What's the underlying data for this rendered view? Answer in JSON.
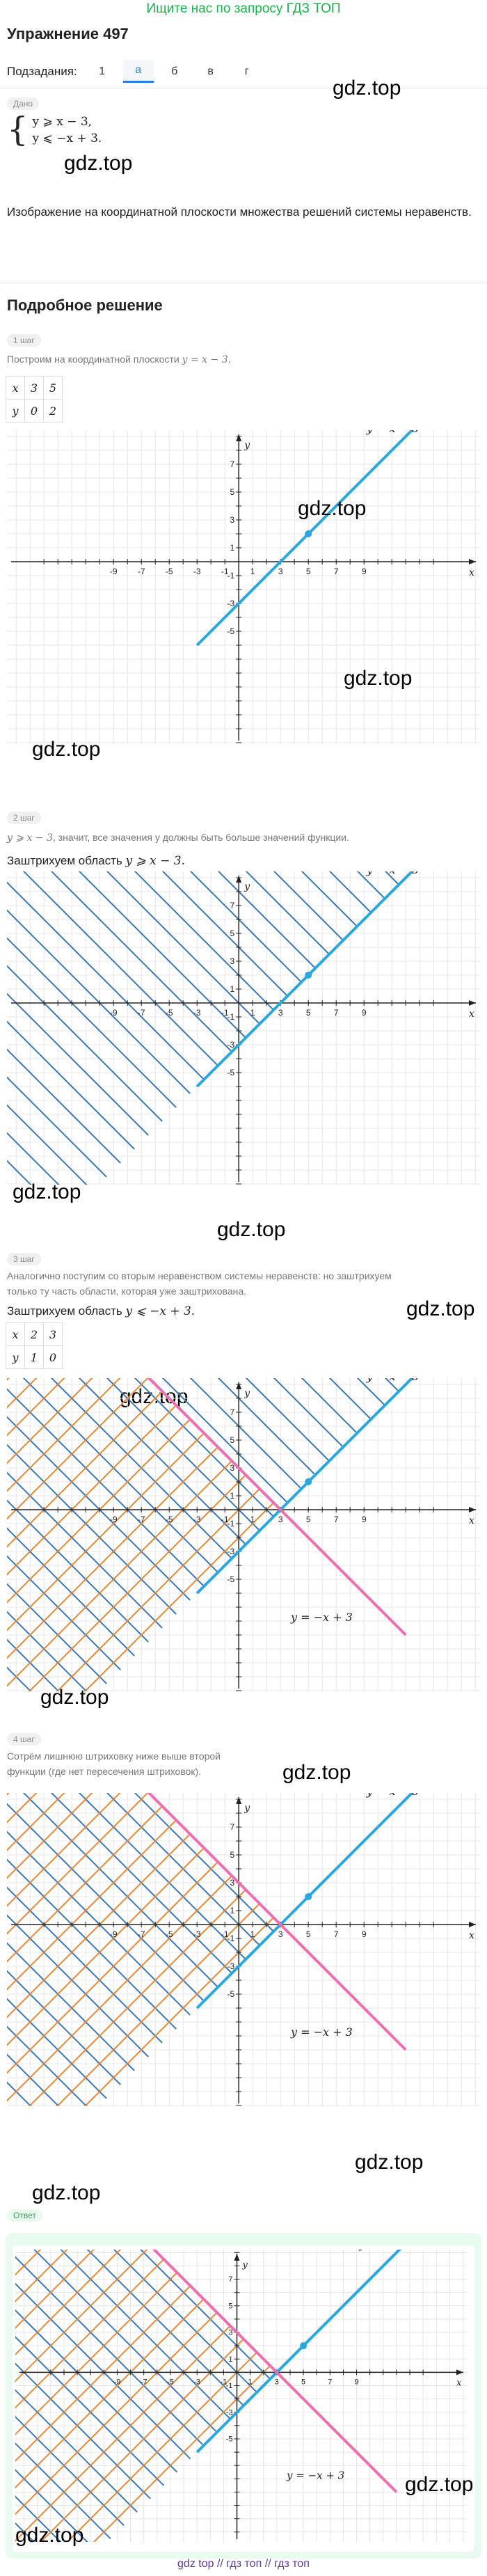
{
  "header": {
    "top_link": "Ищите нас по запросу ГДЗ ТОП",
    "title": "Упражнение 497"
  },
  "subtasks": {
    "label": "Подзадания:",
    "items": [
      "1",
      "а",
      "б",
      "в",
      "г"
    ],
    "active": "а"
  },
  "given": {
    "label": "Дано",
    "line1": "y ⩾ x − 3,",
    "line2": "y ⩽ −x + 3."
  },
  "task": "Изображение на координатной плоскости множества решений системы неравенств.",
  "solution_title": "Подробное решение",
  "steps": [
    {
      "label": "1 шаг",
      "text_pre": "Построим на координатной плоскости ",
      "formula": "y = x − 3.",
      "table": {
        "x": [
          "x",
          "3",
          "5"
        ],
        "y": [
          "y",
          "0",
          "2"
        ]
      }
    },
    {
      "label": "2 шаг",
      "text_pre": "",
      "formula": "y ⩾ x − 3",
      "text_post": ", значит, все значения y должны быть больше значений функции.",
      "bold_pre": "Заштрихуем область ",
      "bold_formula": "y ⩾ x − 3."
    },
    {
      "label": "3 шаг",
      "text": "Аналогично поступим со вторым неравенством системы неравенств: но заштрихуем только ту часть области, которая уже заштрихована.",
      "bold_pre": "Заштрихуем область ",
      "bold_formula": "y ⩽ −x + 3.",
      "table": {
        "x": [
          "x",
          "2",
          "3"
        ],
        "y": [
          "y",
          "1",
          "0"
        ]
      }
    },
    {
      "label": "4 шаг",
      "text": "Сотрём лишнюю штриховку ниже выше второй функции (где нет пересечения штриховок)."
    }
  ],
  "answer_label": "Ответ",
  "graph": {
    "x_ticks": [
      "-9",
      "-7",
      "-5",
      "-3",
      "-1",
      "1",
      "3",
      "5",
      "7",
      "9"
    ],
    "y_ticks": [
      "7",
      "5",
      "3",
      "1",
      "-1",
      "-3",
      "-5"
    ],
    "x_axis": "x",
    "y_axis": "y",
    "line1_label": "y = x − 3",
    "line2_label": "y = −x + 3",
    "line1_color": "#29a8e0",
    "line2_color": "#ee6fb0",
    "hatch1_color": "#3d78b8",
    "hatch2_color": "#e58a3a"
  },
  "watermark": "gdz.top",
  "footer": "gdz top // гдз топ // гдз топ"
}
